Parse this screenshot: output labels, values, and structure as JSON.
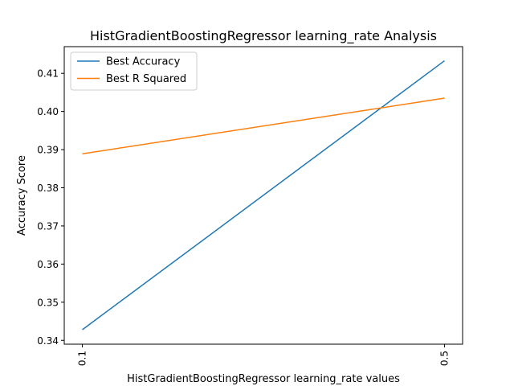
{
  "chart_data": {
    "type": "line",
    "title": "HistGradientBoostingRegressor learning_rate Analysis",
    "xlabel": "HistGradientBoostingRegressor learning_rate values",
    "ylabel": "Accuracy Score",
    "x": [
      0.1,
      0.5
    ],
    "x_tick_labels": [
      "0.1",
      "0.5"
    ],
    "xlim": [
      0.08,
      0.52
    ],
    "ylim": [
      0.339,
      0.417
    ],
    "y_ticks": [
      0.34,
      0.35,
      0.36,
      0.37,
      0.38,
      0.39,
      0.4,
      0.41
    ],
    "y_tick_labels": [
      "0.34",
      "0.35",
      "0.36",
      "0.37",
      "0.38",
      "0.39",
      "0.40",
      "0.41"
    ],
    "grid": false,
    "legend_position": "top-left",
    "series": [
      {
        "name": "Best Accuracy",
        "color": "#1f77b4",
        "values": [
          0.3428,
          0.4133
        ]
      },
      {
        "name": "Best R Squared",
        "color": "#ff7f0e",
        "values": [
          0.3889,
          0.4035
        ]
      }
    ]
  }
}
